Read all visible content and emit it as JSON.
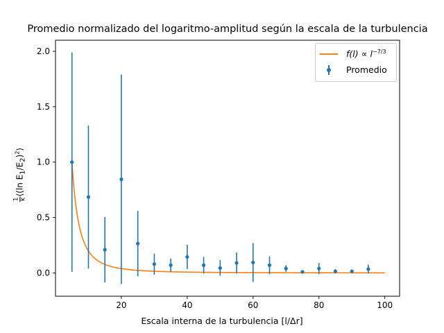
{
  "chart_data": {
    "type": "scatter",
    "title": "Promedio normalizado del logaritmo-amplitud según la escala de la turbulencia",
    "xlabel": "Escala interna de la turbulencia [l/Δr]",
    "ylabel": "1/k ⟨(ln E1/E2)²⟩",
    "xlim": [
      0,
      104.5
    ],
    "ylim": [
      -0.21,
      2.1
    ],
    "x_ticks": [
      20,
      40,
      60,
      80,
      100
    ],
    "y_ticks": [
      0.0,
      0.5,
      1.0,
      1.5,
      2.0
    ],
    "x_tick_labels": [
      "20",
      "40",
      "60",
      "80",
      "100"
    ],
    "y_tick_labels": [
      "0.0",
      "0.5",
      "1.0",
      "1.5",
      "2.0"
    ],
    "grid": false,
    "legend_position": "top-right",
    "series": [
      {
        "name": "Promedio",
        "kind": "errorbar",
        "color": "#1f77b4",
        "x": [
          5,
          10,
          15,
          20,
          25,
          30,
          35,
          40,
          45,
          50,
          55,
          60,
          65,
          70,
          75,
          80,
          85,
          90,
          95
        ],
        "y": [
          1.0,
          0.685,
          0.21,
          0.845,
          0.265,
          0.08,
          0.07,
          0.145,
          0.07,
          0.045,
          0.09,
          0.095,
          0.07,
          0.04,
          0.01,
          0.04,
          0.015,
          0.015,
          0.035
        ],
        "yerr": [
          0.99,
          0.645,
          0.295,
          0.945,
          0.295,
          0.095,
          0.06,
          0.11,
          0.075,
          0.07,
          0.095,
          0.175,
          0.08,
          0.03,
          0.01,
          0.05,
          0.02,
          0.015,
          0.04
        ]
      },
      {
        "name": "f(l) ∝ l^-7/3",
        "kind": "line",
        "color": "#ff7f0e",
        "function": "(x/5)^(-7/3)",
        "x_range": [
          5,
          100
        ]
      }
    ],
    "legend": {
      "line_label_prefix": "f(l) ∝ l",
      "line_label_exp": "−7/3",
      "marker_label": "Promedio"
    },
    "ylabel_parts": {
      "num": "1",
      "den": "k",
      "body": "⟨(ln E",
      "sub1": "1",
      "mid": "/E",
      "sub2": "2",
      "close": ")",
      "sup": "2",
      "end": "⟩"
    }
  }
}
